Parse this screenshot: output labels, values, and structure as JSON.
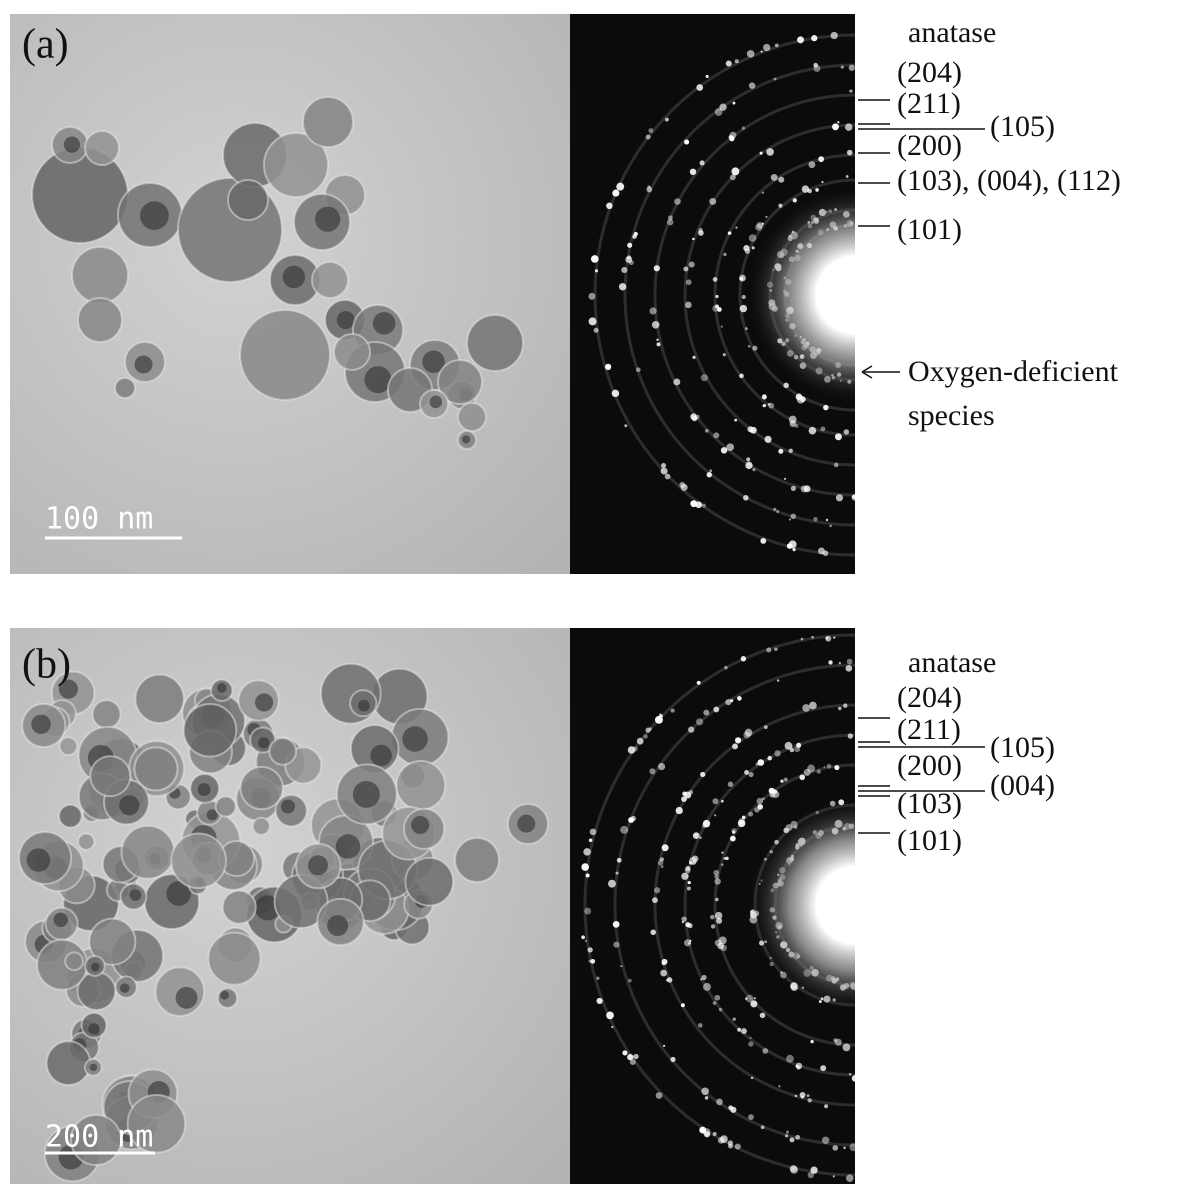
{
  "panels": [
    {
      "label": "(a)",
      "scale_bar": "100 nm",
      "phase": "anatase",
      "planes": [
        "(204)",
        "(211)",
        "(105)",
        "(200)",
        "(103), (004), (112)",
        "(101)"
      ],
      "annotation": "Oxygen-deficient species"
    },
    {
      "label": "(b)",
      "scale_bar": "200 nm",
      "phase": "anatase",
      "planes": [
        "(204)",
        "(211)",
        "(105)",
        "(200)",
        "(004)",
        "(103)",
        "(101)"
      ]
    }
  ]
}
